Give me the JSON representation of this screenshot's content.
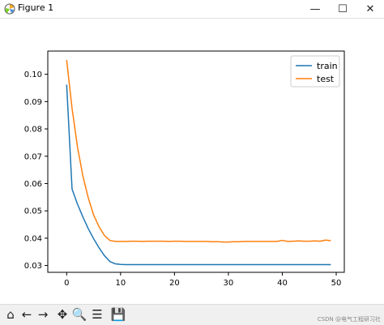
{
  "window": {
    "title": "Figure 1",
    "minimize_glyph": "—",
    "maximize_glyph": "☐",
    "close_glyph": "✕"
  },
  "toolbar": {
    "items": [
      {
        "name": "home-icon",
        "glyph": "⌂"
      },
      {
        "name": "back-icon",
        "glyph": "←"
      },
      {
        "name": "forward-icon",
        "glyph": "→"
      },
      {
        "name": "pan-icon",
        "glyph": "✥"
      },
      {
        "name": "zoom-icon",
        "glyph": "🔍"
      },
      {
        "name": "configure-subplots-icon",
        "glyph": "☰"
      },
      {
        "name": "save-icon",
        "glyph": "💾"
      }
    ]
  },
  "watermark": "CSDN @电气工程研习社",
  "chart_data": {
    "type": "line",
    "title": "",
    "xlabel": "",
    "ylabel": "",
    "xlim": [
      -3.5,
      51.5
    ],
    "ylim": [
      0.0275,
      0.1085
    ],
    "xticks": [
      0,
      10,
      20,
      30,
      40,
      50
    ],
    "yticks": [
      0.03,
      0.04,
      0.05,
      0.06,
      0.07,
      0.08,
      0.09,
      0.1
    ],
    "ytick_labels": [
      "0.03",
      "0.04",
      "0.05",
      "0.06",
      "0.07",
      "0.08",
      "0.09",
      "0.10"
    ],
    "legend_position": "upper-right",
    "series": [
      {
        "name": "train",
        "color": "#1f77b4",
        "x": [
          0,
          1,
          2,
          3,
          4,
          5,
          6,
          7,
          8,
          9,
          10,
          11,
          12,
          13,
          14,
          15,
          16,
          17,
          18,
          19,
          20,
          21,
          22,
          23,
          24,
          25,
          26,
          27,
          28,
          29,
          30,
          31,
          32,
          33,
          34,
          35,
          36,
          37,
          38,
          39,
          40,
          41,
          42,
          43,
          44,
          45,
          46,
          47,
          48,
          49
        ],
        "y": [
          0.0962,
          0.058,
          0.0525,
          0.0478,
          0.0435,
          0.0398,
          0.0365,
          0.0336,
          0.0315,
          0.0306,
          0.0304,
          0.0303,
          0.0303,
          0.0303,
          0.0303,
          0.0303,
          0.0303,
          0.0303,
          0.0303,
          0.0303,
          0.0303,
          0.0303,
          0.0303,
          0.0303,
          0.0303,
          0.0303,
          0.0303,
          0.0303,
          0.0303,
          0.0303,
          0.0303,
          0.0303,
          0.0303,
          0.0303,
          0.0303,
          0.0303,
          0.0303,
          0.0303,
          0.0303,
          0.0303,
          0.0303,
          0.0303,
          0.0303,
          0.0303,
          0.0303,
          0.0303,
          0.0303,
          0.0303,
          0.0303,
          0.0303
        ]
      },
      {
        "name": "test",
        "color": "#ff7f0e",
        "x": [
          0,
          1,
          2,
          3,
          4,
          5,
          6,
          7,
          8,
          9,
          10,
          11,
          12,
          13,
          14,
          15,
          16,
          17,
          18,
          19,
          20,
          21,
          22,
          23,
          24,
          25,
          26,
          27,
          28,
          29,
          30,
          31,
          32,
          33,
          34,
          35,
          36,
          37,
          38,
          39,
          40,
          41,
          42,
          43,
          44,
          45,
          46,
          47,
          48,
          49
        ],
        "y": [
          0.1052,
          0.0875,
          0.0735,
          0.0628,
          0.0548,
          0.0485,
          0.0442,
          0.041,
          0.0392,
          0.0388,
          0.0388,
          0.0388,
          0.0389,
          0.0389,
          0.0388,
          0.0389,
          0.0389,
          0.0389,
          0.0389,
          0.0388,
          0.0389,
          0.0389,
          0.0388,
          0.0388,
          0.0388,
          0.0388,
          0.0388,
          0.0387,
          0.0387,
          0.0386,
          0.0386,
          0.0387,
          0.0387,
          0.0388,
          0.0388,
          0.0388,
          0.0388,
          0.0388,
          0.0388,
          0.0388,
          0.0392,
          0.0388,
          0.0389,
          0.039,
          0.0389,
          0.0389,
          0.039,
          0.0389,
          0.0393,
          0.0391
        ]
      }
    ]
  }
}
